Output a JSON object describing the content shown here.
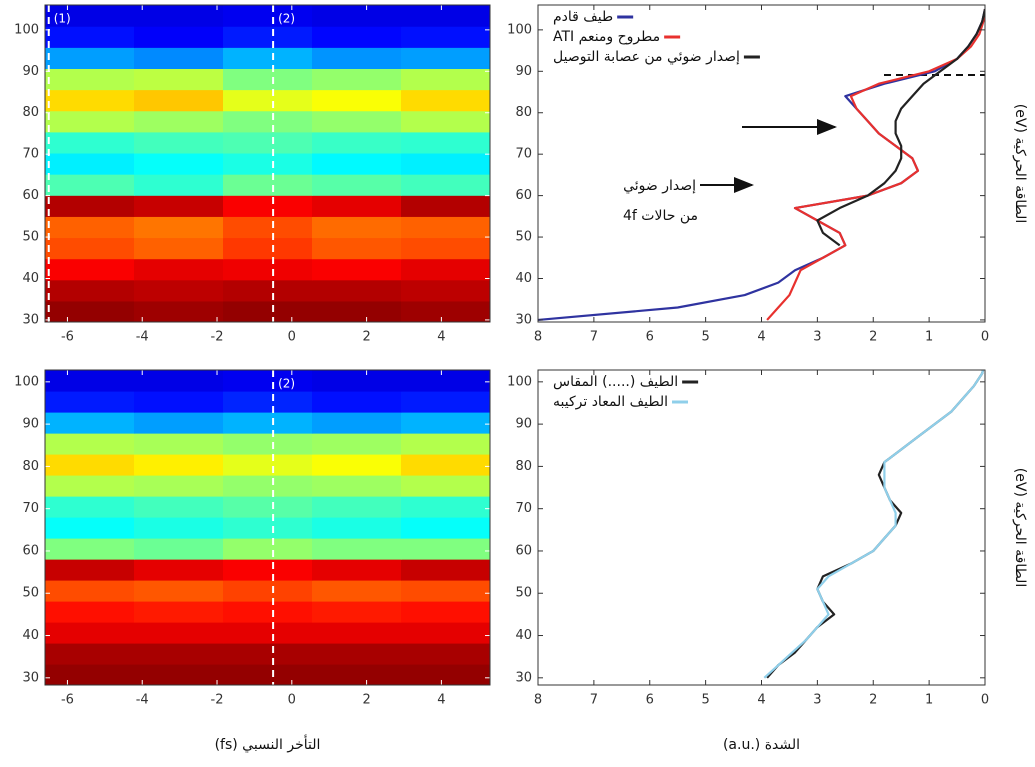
{
  "chart_data": [
    {
      "type": "heatmap",
      "x": [
        -5.41,
        -3.03,
        -0.65,
        1.73,
        4.11
      ],
      "y": [
        32.05,
        37.15,
        42.25,
        47.35,
        52.45,
        57.55,
        62.65,
        67.75,
        72.85,
        77.95,
        83.05,
        88.15,
        93.25,
        98.35,
        103.45
      ],
      "z": [
        [
          0.98,
          0.97,
          0.98,
          0.98,
          0.97
        ],
        [
          0.95,
          0.94,
          0.95,
          0.95,
          0.94
        ],
        [
          0.88,
          0.9,
          0.89,
          0.88,
          0.9
        ],
        [
          0.8,
          0.78,
          0.82,
          0.79,
          0.8
        ],
        [
          0.78,
          0.76,
          0.8,
          0.77,
          0.78
        ],
        [
          0.95,
          0.93,
          0.88,
          0.9,
          0.95
        ],
        [
          0.45,
          0.42,
          0.48,
          0.46,
          0.44
        ],
        [
          0.36,
          0.38,
          0.4,
          0.37,
          0.36
        ],
        [
          0.42,
          0.44,
          0.45,
          0.43,
          0.42
        ],
        [
          0.55,
          0.53,
          0.5,
          0.52,
          0.55
        ],
        [
          0.66,
          0.68,
          0.6,
          0.62,
          0.66
        ],
        [
          0.55,
          0.56,
          0.5,
          0.52,
          0.55
        ],
        [
          0.28,
          0.26,
          0.3,
          0.27,
          0.28
        ],
        [
          0.14,
          0.12,
          0.15,
          0.13,
          0.14
        ],
        [
          0.1,
          0.1,
          0.11,
          0.1,
          0.1
        ]
      ],
      "colormap": "jet",
      "markers": [
        {
          "x": -6.5,
          "label": "(1)"
        },
        {
          "x": -0.5,
          "label": "(2)"
        }
      ],
      "xlim": [
        -6.6,
        5.3
      ],
      "ylim": [
        29.5,
        106
      ],
      "xticks": [
        -6,
        -4,
        -2,
        0,
        2,
        4
      ],
      "yticks": [
        30,
        40,
        50,
        60,
        70,
        80,
        90,
        100
      ]
    },
    {
      "type": "line",
      "y": [
        30,
        33,
        36,
        39,
        42,
        45,
        48,
        51,
        54,
        57,
        60,
        63,
        66,
        69,
        72,
        75,
        78,
        81,
        84,
        87,
        90,
        93,
        96,
        99,
        102,
        105
      ],
      "series": [
        {
          "name": "طيف قادم",
          "color": "#2f33a0",
          "values": [
            8,
            5.5,
            4.3,
            3.7,
            3.4,
            2.9,
            2.5,
            2.6,
            3.0,
            3.4,
            2.1,
            1.5,
            1.2,
            1.3,
            1.6,
            1.9,
            2.1,
            2.3,
            2.5,
            1.8,
            0.9,
            0.5,
            0.3,
            0.15,
            0.05,
            0
          ]
        },
        {
          "name": "مطروح ومنعم ATI",
          "color": "#e8312e",
          "values": [
            3.9,
            3.7,
            3.5,
            3.4,
            3.3,
            2.9,
            2.5,
            2.6,
            3.0,
            3.4,
            2.1,
            1.5,
            1.2,
            1.3,
            1.6,
            1.9,
            2.1,
            2.3,
            2.4,
            1.9,
            1.0,
            0.5,
            0.25,
            0.1,
            0.03,
            0
          ]
        },
        {
          "name": "إصدار ضوئي من عصابة التوصيل",
          "color": "#222222",
          "values": [
            null,
            null,
            null,
            null,
            null,
            null,
            2.6,
            2.9,
            3.0,
            2.6,
            2.1,
            1.8,
            1.6,
            1.5,
            1.5,
            1.6,
            1.6,
            1.5,
            1.3,
            1.1,
            0.8,
            0.5,
            0.3,
            0.15,
            0.05,
            0
          ]
        }
      ],
      "annotations": [
        "إصدار ضوئي",
        "من حالات 4f"
      ],
      "legend": "upper left",
      "ylabel": "الطاقة الحركية (eV)",
      "xlim": [
        8,
        0
      ],
      "ylim": [
        29.5,
        106
      ],
      "xticks": [
        8,
        7,
        6,
        5,
        4,
        3,
        2,
        1,
        0
      ],
      "yticks": [
        30,
        40,
        50,
        60,
        70,
        80,
        90,
        100
      ]
    },
    {
      "type": "heatmap",
      "x": [
        -5.41,
        -3.03,
        -0.65,
        1.73,
        4.11
      ],
      "y": [
        30.78,
        35.75,
        40.72,
        45.68,
        50.65,
        55.62,
        60.58,
        65.55,
        70.52,
        75.48,
        80.45,
        85.42,
        90.38,
        95.35,
        100.32
      ],
      "z": [
        [
          0.98,
          0.98,
          0.98,
          0.98,
          0.98
        ],
        [
          0.96,
          0.96,
          0.96,
          0.96,
          0.96
        ],
        [
          0.9,
          0.9,
          0.9,
          0.9,
          0.9
        ],
        [
          0.86,
          0.85,
          0.86,
          0.85,
          0.86
        ],
        [
          0.8,
          0.79,
          0.81,
          0.79,
          0.8
        ],
        [
          0.93,
          0.9,
          0.88,
          0.9,
          0.93
        ],
        [
          0.5,
          0.48,
          0.52,
          0.5,
          0.5
        ],
        [
          0.38,
          0.4,
          0.42,
          0.4,
          0.38
        ],
        [
          0.42,
          0.44,
          0.46,
          0.44,
          0.42
        ],
        [
          0.55,
          0.54,
          0.52,
          0.53,
          0.55
        ],
        [
          0.66,
          0.64,
          0.6,
          0.62,
          0.66
        ],
        [
          0.55,
          0.54,
          0.52,
          0.53,
          0.55
        ],
        [
          0.3,
          0.28,
          0.3,
          0.28,
          0.3
        ],
        [
          0.15,
          0.14,
          0.16,
          0.14,
          0.15
        ],
        [
          0.1,
          0.1,
          0.11,
          0.1,
          0.1
        ]
      ],
      "colormap": "jet",
      "markers": [
        {
          "x": -0.5,
          "label": "(2)"
        }
      ],
      "xlabel": "التأخر النسبي (fs)",
      "xlim": [
        -6.6,
        5.3
      ],
      "ylim": [
        28.3,
        102.8
      ],
      "xticks": [
        -6,
        -4,
        -2,
        0,
        2,
        4
      ],
      "yticks": [
        30,
        40,
        50,
        60,
        70,
        80,
        90,
        100
      ]
    },
    {
      "type": "line",
      "y": [
        30,
        33,
        36,
        39,
        42,
        45,
        48,
        51,
        54,
        57,
        60,
        63,
        66,
        69,
        72,
        75,
        78,
        81,
        84,
        87,
        90,
        93,
        96,
        99,
        102,
        105
      ],
      "series": [
        {
          "name": "الطيف (.....) المقاس",
          "color": "#222222",
          "values": [
            3.9,
            3.7,
            3.4,
            3.2,
            3.0,
            2.7,
            2.9,
            3.0,
            2.9,
            2.4,
            2.0,
            1.8,
            1.6,
            1.5,
            1.7,
            1.8,
            1.9,
            1.8,
            1.5,
            1.2,
            0.9,
            0.6,
            0.4,
            0.2,
            0.05,
            0
          ]
        },
        {
          "name": "الطيف المعاد تركيبه",
          "color": "#8fcfea",
          "values": [
            3.95,
            3.7,
            3.45,
            3.2,
            3.0,
            2.8,
            2.9,
            3.0,
            2.8,
            2.4,
            2.0,
            1.8,
            1.6,
            1.6,
            1.7,
            1.8,
            1.8,
            1.8,
            1.5,
            1.2,
            0.9,
            0.6,
            0.4,
            0.2,
            0.05,
            0
          ]
        }
      ],
      "legend": "upper left",
      "xlabel": "الشدة (.a.u)",
      "ylabel": "الطاقة الحركية (eV)",
      "xlim": [
        8,
        0
      ],
      "ylim": [
        28.3,
        102.8
      ],
      "xticks": [
        8,
        7,
        6,
        5,
        4,
        3,
        2,
        1,
        0
      ],
      "yticks": [
        30,
        40,
        50,
        60,
        70,
        80,
        90,
        100
      ]
    }
  ]
}
